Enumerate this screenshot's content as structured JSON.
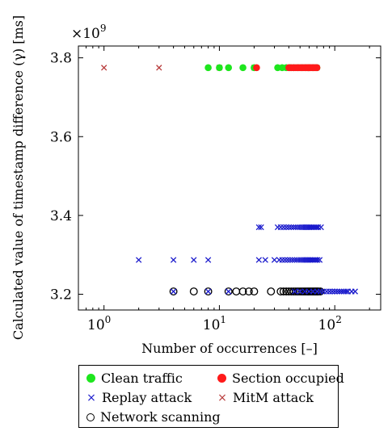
{
  "chart_data": {
    "type": "scatter",
    "x_scale": "log",
    "xlim": [
      0.6,
      250
    ],
    "ylim": [
      3.16,
      3.83
    ],
    "xlabel": "Number of occurrences [–]",
    "ylabel": "Calculated value of timestamp difference (γ) [ms]",
    "y_multiplier": "×10^9",
    "x_ticks": [
      1,
      10,
      100
    ],
    "x_tick_labels": [
      "10^0",
      "10^1",
      "10^2"
    ],
    "y_ticks": [
      3.2,
      3.4,
      3.6,
      3.8
    ],
    "y_tick_labels": [
      "3.2",
      "3.4",
      "3.6",
      "3.8"
    ],
    "grid": false,
    "legend_position": "below",
    "series": [
      {
        "name": "Clean traffic",
        "marker": "filled-circle",
        "color": "#1ee61e",
        "x": [
          8,
          10,
          12,
          16,
          20,
          32,
          35,
          38,
          41,
          44,
          48,
          52,
          56,
          60,
          65,
          70
        ],
        "y": [
          3.775,
          3.775,
          3.775,
          3.775,
          3.775,
          3.775,
          3.775,
          3.775,
          3.775,
          3.775,
          3.775,
          3.775,
          3.775,
          3.775,
          3.775,
          3.775
        ]
      },
      {
        "name": "Section occupied",
        "marker": "filled-circle",
        "color": "#ff1a1a",
        "x": [
          21,
          40,
          42,
          44,
          46,
          48,
          50,
          52,
          54,
          56,
          58,
          60,
          62,
          64,
          66,
          68,
          70
        ],
        "y": [
          3.775,
          3.775,
          3.775,
          3.775,
          3.775,
          3.775,
          3.775,
          3.775,
          3.775,
          3.775,
          3.775,
          3.775,
          3.775,
          3.775,
          3.775,
          3.775,
          3.775
        ]
      },
      {
        "name": "Replay attack",
        "marker": "cross",
        "color": "#1a1acc",
        "x": [
          2,
          4,
          6,
          8,
          22,
          25,
          30,
          33,
          35,
          37,
          39,
          41,
          43,
          45,
          47,
          49,
          51,
          53,
          55,
          57,
          59,
          61,
          63,
          65,
          67,
          69,
          71,
          74,
          22,
          23,
          32,
          34,
          36,
          38,
          40,
          42,
          44,
          46,
          48,
          50,
          52,
          54,
          56,
          58,
          60,
          62,
          64,
          66,
          68,
          70,
          72,
          76,
          4,
          8,
          12,
          45,
          50,
          55,
          60,
          65,
          70,
          75,
          80,
          85,
          90,
          95,
          100,
          105,
          110,
          115,
          120,
          125,
          130,
          140,
          150
        ],
        "y": [
          3.287,
          3.287,
          3.287,
          3.287,
          3.287,
          3.287,
          3.287,
          3.287,
          3.287,
          3.287,
          3.287,
          3.287,
          3.287,
          3.287,
          3.287,
          3.287,
          3.287,
          3.287,
          3.287,
          3.287,
          3.287,
          3.287,
          3.287,
          3.287,
          3.287,
          3.287,
          3.287,
          3.287,
          3.37,
          3.37,
          3.37,
          3.37,
          3.37,
          3.37,
          3.37,
          3.37,
          3.37,
          3.37,
          3.37,
          3.37,
          3.37,
          3.37,
          3.37,
          3.37,
          3.37,
          3.37,
          3.37,
          3.37,
          3.37,
          3.37,
          3.37,
          3.37,
          3.207,
          3.207,
          3.207,
          3.207,
          3.207,
          3.207,
          3.207,
          3.207,
          3.207,
          3.207,
          3.207,
          3.207,
          3.207,
          3.207,
          3.207,
          3.207,
          3.207,
          3.207,
          3.207,
          3.207,
          3.207,
          3.207,
          3.207
        ]
      },
      {
        "name": "MitM attack",
        "marker": "cross",
        "color": "#b83b3b",
        "x": [
          1,
          3,
          10,
          20,
          33,
          36,
          39,
          42,
          45,
          48,
          51,
          54,
          57,
          60,
          63,
          66,
          70
        ],
        "y": [
          3.775,
          3.775,
          3.775,
          3.775,
          3.775,
          3.775,
          3.775,
          3.775,
          3.775,
          3.775,
          3.775,
          3.775,
          3.775,
          3.775,
          3.775,
          3.775,
          3.775
        ]
      },
      {
        "name": "Network scanning",
        "marker": "open-circle",
        "color": "#000000",
        "x": [
          4,
          6,
          8,
          12,
          14,
          16,
          18,
          20,
          28,
          34,
          36,
          38,
          40,
          42,
          44,
          46,
          48,
          50,
          52,
          54,
          56,
          58,
          60,
          62,
          64,
          66,
          68,
          70,
          72,
          75
        ],
        "y": [
          3.207,
          3.207,
          3.207,
          3.207,
          3.207,
          3.207,
          3.207,
          3.207,
          3.207,
          3.207,
          3.207,
          3.207,
          3.207,
          3.207,
          3.207,
          3.207,
          3.207,
          3.207,
          3.207,
          3.207,
          3.207,
          3.207,
          3.207,
          3.207,
          3.207,
          3.207,
          3.207,
          3.207,
          3.207,
          3.207
        ]
      }
    ]
  },
  "legend": {
    "items": [
      {
        "label": "Clean traffic",
        "marker": "filled-circle",
        "color": "#1ee61e"
      },
      {
        "label": "Section occupied",
        "marker": "filled-circle",
        "color": "#ff1a1a"
      },
      {
        "label": "Replay attack",
        "marker": "cross",
        "color": "#1a1acc"
      },
      {
        "label": "MitM attack",
        "marker": "cross",
        "color": "#b83b3b"
      },
      {
        "label": "Network scanning",
        "marker": "open-circle",
        "color": "#000000"
      }
    ]
  }
}
